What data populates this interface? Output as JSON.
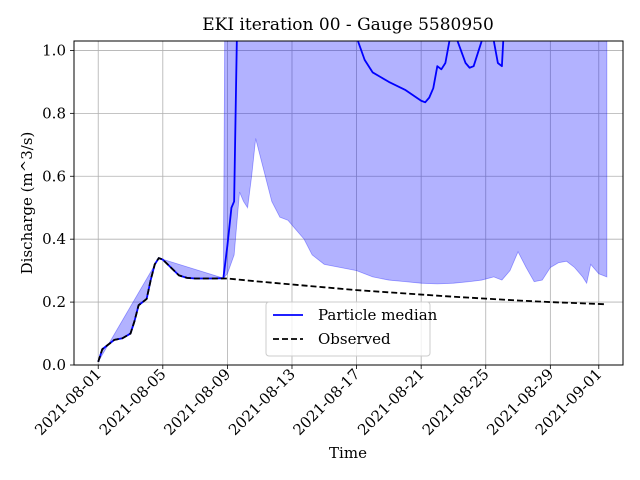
{
  "chart_data": {
    "type": "line",
    "title": "EKI iteration 00 - Gauge 5580950",
    "xlabel": "Time",
    "ylabel": "Discharge (m^3/s)",
    "x_type": "date",
    "xlim": [
      "2021-07-30T12:00",
      "2021-09-02T12:00"
    ],
    "ylim": [
      0,
      1.03
    ],
    "grid": true,
    "legend_position": "lower-center",
    "x_ticks": [
      "2021-08-01",
      "2021-08-05",
      "2021-08-09",
      "2021-08-13",
      "2021-08-17",
      "2021-08-21",
      "2021-08-25",
      "2021-08-29",
      "2021-09-01"
    ],
    "y_ticks": [
      0.0,
      0.2,
      0.4,
      0.6,
      0.8,
      1.0
    ],
    "y_tick_labels": [
      "0.0",
      "0.2",
      "0.4",
      "0.6",
      "0.8",
      "1.0"
    ],
    "series": [
      {
        "name": "Particle median",
        "color": "#0000ff",
        "style": "solid",
        "points": [
          [
            "2021-08-01T00:00",
            0.01
          ],
          [
            "2021-08-01T06:00",
            0.05
          ],
          [
            "2021-08-01T12:00",
            0.06
          ],
          [
            "2021-08-02T00:00",
            0.08
          ],
          [
            "2021-08-02T12:00",
            0.085
          ],
          [
            "2021-08-03T00:00",
            0.1
          ],
          [
            "2021-08-03T06:00",
            0.14
          ],
          [
            "2021-08-03T12:00",
            0.19
          ],
          [
            "2021-08-04T00:00",
            0.21
          ],
          [
            "2021-08-04T06:00",
            0.27
          ],
          [
            "2021-08-04T12:00",
            0.32
          ],
          [
            "2021-08-04T18:00",
            0.34
          ],
          [
            "2021-08-05T00:00",
            0.335
          ],
          [
            "2021-08-05T12:00",
            0.31
          ],
          [
            "2021-08-06T00:00",
            0.285
          ],
          [
            "2021-08-06T12:00",
            0.277
          ],
          [
            "2021-08-07T00:00",
            0.275
          ],
          [
            "2021-08-08T00:00",
            0.275
          ],
          [
            "2021-08-08T18:00",
            0.276
          ],
          [
            "2021-08-09T00:00",
            0.38
          ],
          [
            "2021-08-09T06:00",
            0.5
          ],
          [
            "2021-08-09T10:00",
            0.52
          ],
          [
            "2021-08-09T14:00",
            1.03
          ]
        ],
        "points_2": [
          [
            "2021-08-17T02:00",
            1.03
          ],
          [
            "2021-08-17T12:00",
            0.97
          ],
          [
            "2021-08-18T00:00",
            0.93
          ],
          [
            "2021-08-19T00:00",
            0.9
          ],
          [
            "2021-08-20T00:00",
            0.875
          ],
          [
            "2021-08-21T00:00",
            0.84
          ],
          [
            "2021-08-21T06:00",
            0.835
          ],
          [
            "2021-08-21T12:00",
            0.85
          ],
          [
            "2021-08-21T18:00",
            0.88
          ],
          [
            "2021-08-22T00:00",
            0.95
          ],
          [
            "2021-08-22T06:00",
            0.94
          ],
          [
            "2021-08-22T12:00",
            0.96
          ],
          [
            "2021-08-22T18:00",
            1.03
          ]
        ],
        "points_3": [
          [
            "2021-08-23T06:00",
            1.03
          ],
          [
            "2021-08-23T18:00",
            0.96
          ],
          [
            "2021-08-24T00:00",
            0.945
          ],
          [
            "2021-08-24T06:00",
            0.95
          ],
          [
            "2021-08-24T18:00",
            1.03
          ]
        ],
        "points_4": [
          [
            "2021-08-25T12:00",
            1.03
          ],
          [
            "2021-08-25T18:00",
            0.96
          ],
          [
            "2021-08-26T00:00",
            0.95
          ],
          [
            "2021-08-26T02:00",
            1.03
          ]
        ]
      },
      {
        "name": "Observed",
        "color": "#000000",
        "style": "dashed",
        "points": [
          [
            "2021-08-01T00:00",
            0.01
          ],
          [
            "2021-08-01T06:00",
            0.05
          ],
          [
            "2021-08-01T12:00",
            0.06
          ],
          [
            "2021-08-02T00:00",
            0.08
          ],
          [
            "2021-08-02T12:00",
            0.085
          ],
          [
            "2021-08-03T00:00",
            0.1
          ],
          [
            "2021-08-03T06:00",
            0.14
          ],
          [
            "2021-08-03T12:00",
            0.19
          ],
          [
            "2021-08-04T00:00",
            0.21
          ],
          [
            "2021-08-04T06:00",
            0.27
          ],
          [
            "2021-08-04T12:00",
            0.32
          ],
          [
            "2021-08-04T18:00",
            0.34
          ],
          [
            "2021-08-05T00:00",
            0.335
          ],
          [
            "2021-08-05T12:00",
            0.31
          ],
          [
            "2021-08-06T00:00",
            0.285
          ],
          [
            "2021-08-06T12:00",
            0.277
          ],
          [
            "2021-08-07T00:00",
            0.275
          ],
          [
            "2021-08-09T00:00",
            0.275
          ],
          [
            "2021-08-11T00:00",
            0.265
          ],
          [
            "2021-08-13T00:00",
            0.256
          ],
          [
            "2021-08-15T00:00",
            0.247
          ],
          [
            "2021-08-17T00:00",
            0.238
          ],
          [
            "2021-08-19T00:00",
            0.231
          ],
          [
            "2021-08-21T00:00",
            0.224
          ],
          [
            "2021-08-23T00:00",
            0.217
          ],
          [
            "2021-08-25T00:00",
            0.211
          ],
          [
            "2021-08-27T00:00",
            0.205
          ],
          [
            "2021-08-29T00:00",
            0.2
          ],
          [
            "2021-08-31T00:00",
            0.196
          ],
          [
            "2021-09-01T12:00",
            0.193
          ]
        ]
      }
    ],
    "band": {
      "color": "#0000ff",
      "opacity": 0.3,
      "upper": [
        [
          "2021-08-01T00:00",
          0.01
        ],
        [
          "2021-08-04T18:00",
          0.34
        ],
        [
          "2021-08-08T18:00",
          0.276
        ],
        [
          "2021-08-08T20:00",
          1.03
        ],
        [
          "2021-09-01T12:00",
          1.03
        ]
      ],
      "lower": [
        [
          "2021-08-01T00:00",
          0.01
        ],
        [
          "2021-08-01T06:00",
          0.05
        ],
        [
          "2021-08-01T12:00",
          0.06
        ],
        [
          "2021-08-02T00:00",
          0.08
        ],
        [
          "2021-08-02T12:00",
          0.085
        ],
        [
          "2021-08-03T00:00",
          0.1
        ],
        [
          "2021-08-03T06:00",
          0.14
        ],
        [
          "2021-08-03T12:00",
          0.19
        ],
        [
          "2021-08-04T00:00",
          0.21
        ],
        [
          "2021-08-04T06:00",
          0.27
        ],
        [
          "2021-08-04T12:00",
          0.32
        ],
        [
          "2021-08-04T18:00",
          0.34
        ],
        [
          "2021-08-05T00:00",
          0.335
        ],
        [
          "2021-08-05T12:00",
          0.31
        ],
        [
          "2021-08-06T00:00",
          0.285
        ],
        [
          "2021-08-06T12:00",
          0.277
        ],
        [
          "2021-08-07T00:00",
          0.275
        ],
        [
          "2021-08-08T18:00",
          0.276
        ],
        [
          "2021-08-09T00:00",
          0.29
        ],
        [
          "2021-08-09T10:00",
          0.35
        ],
        [
          "2021-08-09T18:00",
          0.55
        ],
        [
          "2021-08-10T00:00",
          0.52
        ],
        [
          "2021-08-10T06:00",
          0.5
        ],
        [
          "2021-08-10T12:00",
          0.6
        ],
        [
          "2021-08-10T18:00",
          0.72
        ],
        [
          "2021-08-11T06:00",
          0.62
        ],
        [
          "2021-08-11T18:00",
          0.52
        ],
        [
          "2021-08-12T06:00",
          0.47
        ],
        [
          "2021-08-12T18:00",
          0.46
        ],
        [
          "2021-08-13T06:00",
          0.43
        ],
        [
          "2021-08-13T18:00",
          0.4
        ],
        [
          "2021-08-14T06:00",
          0.35
        ],
        [
          "2021-08-15T00:00",
          0.32
        ],
        [
          "2021-08-16T00:00",
          0.31
        ],
        [
          "2021-08-17T00:00",
          0.3
        ],
        [
          "2021-08-18T00:00",
          0.28
        ],
        [
          "2021-08-19T00:00",
          0.27
        ],
        [
          "2021-08-20T00:00",
          0.265
        ],
        [
          "2021-08-21T00:00",
          0.26
        ],
        [
          "2021-08-22T00:00",
          0.258
        ],
        [
          "2021-08-23T00:00",
          0.26
        ],
        [
          "2021-08-24T00:00",
          0.265
        ],
        [
          "2021-08-24T18:00",
          0.27
        ],
        [
          "2021-08-25T12:00",
          0.28
        ],
        [
          "2021-08-26T00:00",
          0.27
        ],
        [
          "2021-08-26T12:00",
          0.3
        ],
        [
          "2021-08-27T00:00",
          0.36
        ],
        [
          "2021-08-27T12:00",
          0.31
        ],
        [
          "2021-08-28T00:00",
          0.265
        ],
        [
          "2021-08-28T12:00",
          0.27
        ],
        [
          "2021-08-29T00:00",
          0.31
        ],
        [
          "2021-08-29T12:00",
          0.325
        ],
        [
          "2021-08-30T00:00",
          0.33
        ],
        [
          "2021-08-30T12:00",
          0.31
        ],
        [
          "2021-08-31T00:00",
          0.28
        ],
        [
          "2021-08-31T06:00",
          0.26
        ],
        [
          "2021-08-31T12:00",
          0.32
        ],
        [
          "2021-09-01T00:00",
          0.29
        ],
        [
          "2021-09-01T12:00",
          0.28
        ]
      ]
    }
  }
}
